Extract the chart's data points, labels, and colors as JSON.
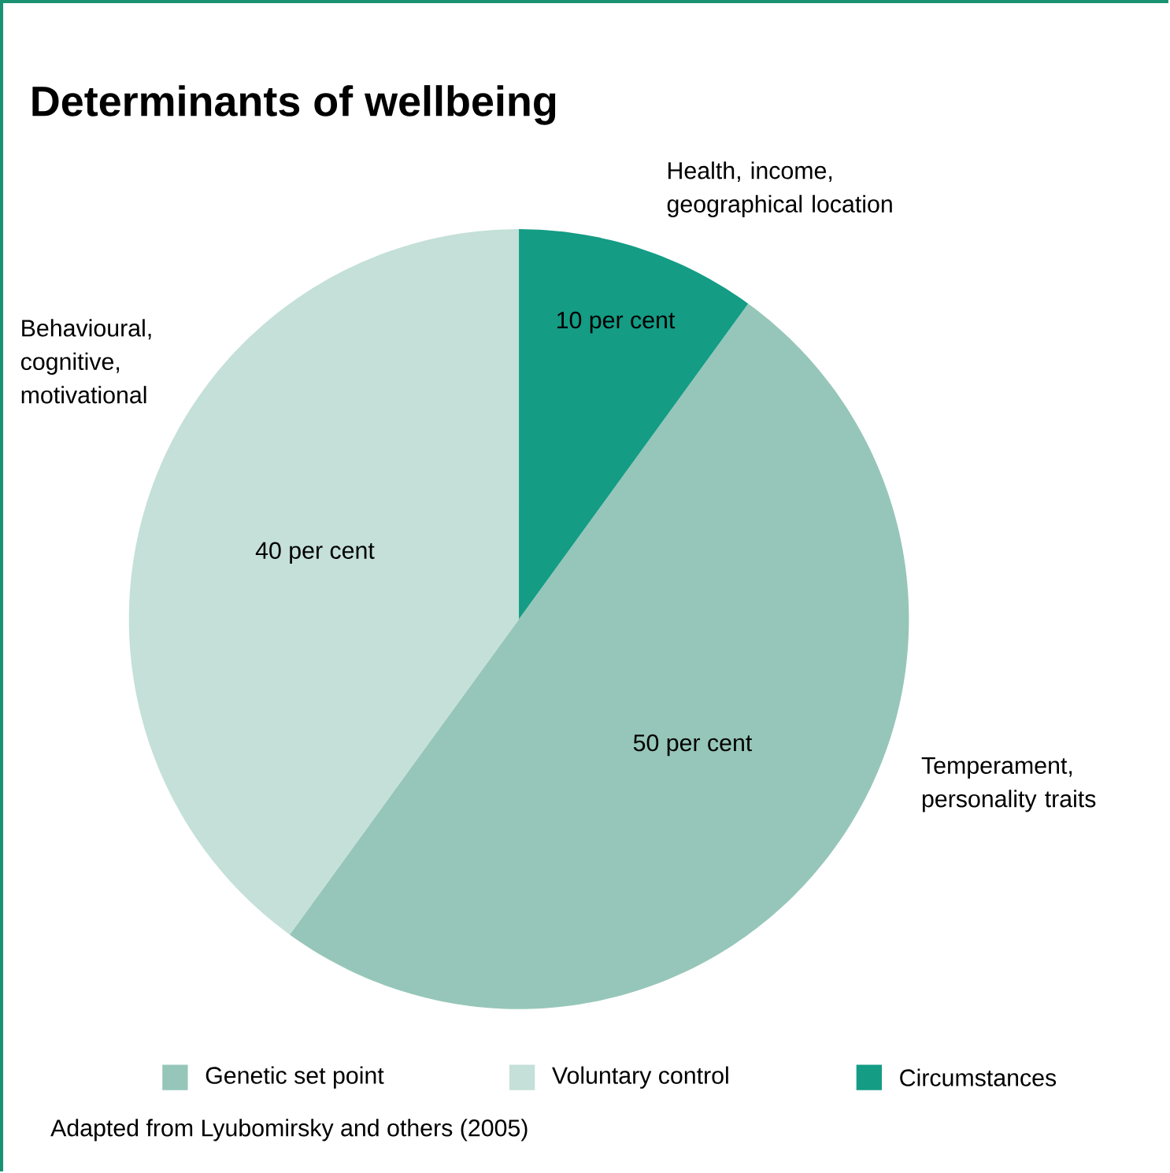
{
  "chart_data": {
    "type": "pie",
    "title": "Determinants of wellbeing",
    "categories": [
      "Genetic set point",
      "Voluntary control",
      "Circumstances"
    ],
    "values": [
      50,
      40,
      10
    ],
    "colors": [
      "#96c6b9",
      "#c4e0d8",
      "#149c85"
    ],
    "value_labels": [
      "50 per cent",
      "40 per cent",
      "10 per cent"
    ],
    "legend": "bottom",
    "annotations": [
      "Temperament, personality traits",
      "Behavioural, cognitive, motivational",
      "Health, income, geographical location",
      "Adapted from Lyubomirsky and others (2005)"
    ]
  }
}
